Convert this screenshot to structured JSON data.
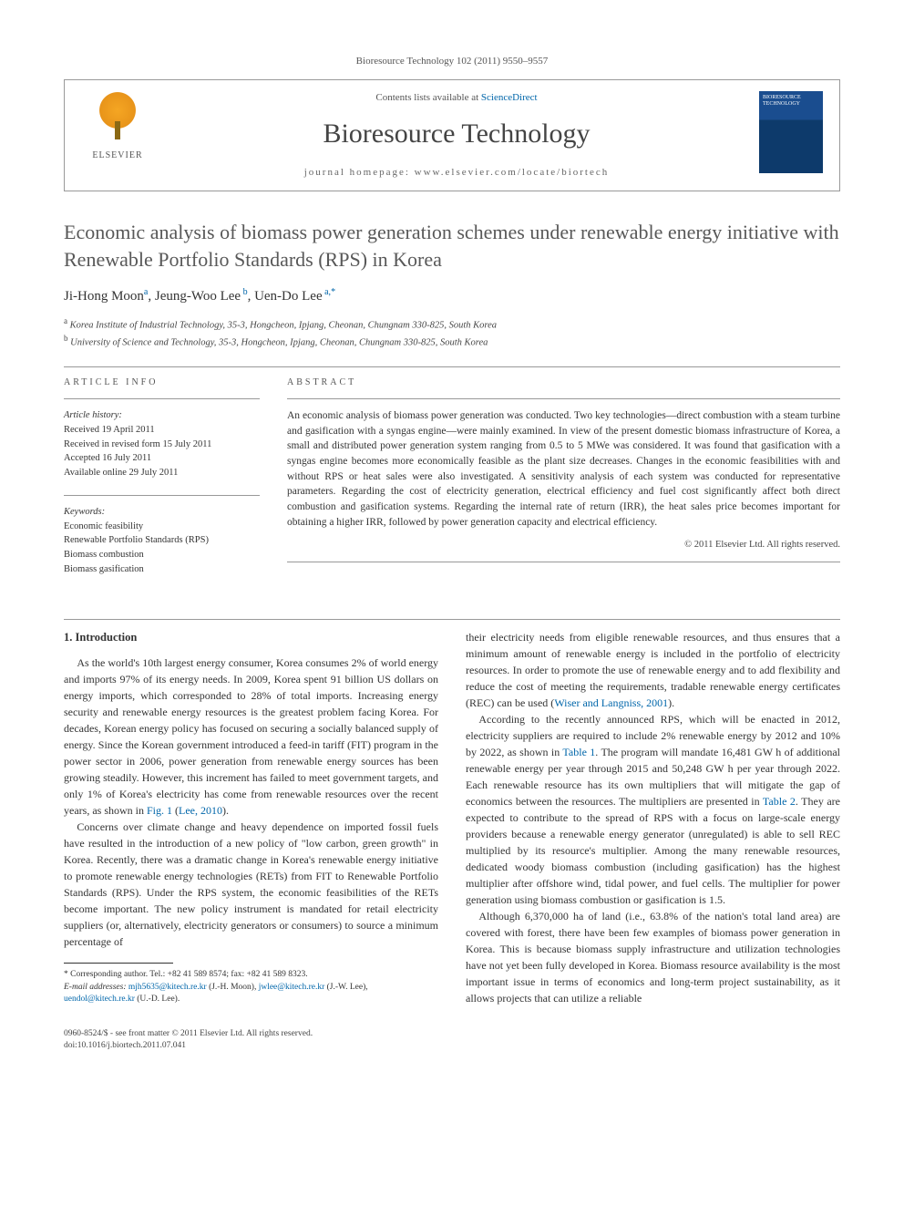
{
  "journal_ref": "Bioresource Technology 102 (2011) 9550–9557",
  "masthead": {
    "contents_prefix": "Contents lists available at ",
    "contents_link": "ScienceDirect",
    "journal_name": "Bioresource Technology",
    "homepage_prefix": "journal homepage: ",
    "homepage_url": "www.elsevier.com/locate/biortech",
    "publisher": "ELSEVIER",
    "cover_label": "BIORESOURCE TECHNOLOGY"
  },
  "article": {
    "title": "Economic analysis of biomass power generation schemes under renewable energy initiative with Renewable Portfolio Standards (RPS) in Korea",
    "authors_html": "Ji-Hong Moon<sup>a</sup>, Jeung-Woo Lee<sup>b</sup>, Uen-Do Lee<sup>a,</sup>",
    "corr_mark": "*",
    "affiliations": {
      "a": "Korea Institute of Industrial Technology, 35-3, Hongcheon, Ipjang, Cheonan, Chungnam 330-825, South Korea",
      "b": "University of Science and Technology, 35-3, Hongcheon, Ipjang, Cheonan, Chungnam 330-825, South Korea"
    }
  },
  "info": {
    "heading": "ARTICLE INFO",
    "history_label": "Article history:",
    "history": {
      "received": "Received 19 April 2011",
      "revised": "Received in revised form 15 July 2011",
      "accepted": "Accepted 16 July 2011",
      "online": "Available online 29 July 2011"
    },
    "keywords_label": "Keywords:",
    "keywords": [
      "Economic feasibility",
      "Renewable Portfolio Standards (RPS)",
      "Biomass combustion",
      "Biomass gasification"
    ]
  },
  "abstract": {
    "heading": "ABSTRACT",
    "text": "An economic analysis of biomass power generation was conducted. Two key technologies—direct combustion with a steam turbine and gasification with a syngas engine—were mainly examined. In view of the present domestic biomass infrastructure of Korea, a small and distributed power generation system ranging from 0.5 to 5 MWe was considered. It was found that gasification with a syngas engine becomes more economically feasible as the plant size decreases. Changes in the economic feasibilities with and without RPS or heat sales were also investigated. A sensitivity analysis of each system was conducted for representative parameters. Regarding the cost of electricity generation, electrical efficiency and fuel cost significantly affect both direct combustion and gasification systems. Regarding the internal rate of return (IRR), the heat sales price becomes important for obtaining a higher IRR, followed by power generation capacity and electrical efficiency.",
    "copyright": "© 2011 Elsevier Ltd. All rights reserved."
  },
  "body": {
    "section1_heading": "1. Introduction",
    "p1": "As the world's 10th largest energy consumer, Korea consumes 2% of world energy and imports 97% of its energy needs. In 2009, Korea spent 91 billion US dollars on energy imports, which corresponded to 28% of total imports. Increasing energy security and renewable energy resources is the greatest problem facing Korea. For decades, Korean energy policy has focused on securing a socially balanced supply of energy. Since the Korean government introduced a feed-in tariff (FIT) program in the power sector in 2006, power generation from renewable energy sources has been growing steadily. However, this increment has failed to meet government targets, and only 1% of Korea's electricity has come from renewable resources over the recent years, as shown in ",
    "p1_link1": "Fig. 1",
    "p1_after": " (",
    "p1_link2": "Lee, 2010",
    "p1_end": ").",
    "p2": "Concerns over climate change and heavy dependence on imported fossil fuels have resulted in the introduction of a new policy of \"low carbon, green growth\" in Korea. Recently, there was a dramatic change in Korea's renewable energy initiative to promote renewable energy technologies (RETs) from FIT to Renewable Portfolio Standards (RPS). Under the RPS system, the economic feasibilities of the RETs become important. The new policy instrument is mandated for retail electricity suppliers (or, alternatively, electricity generators or consumers) to source a minimum percentage of ",
    "p3": "their electricity needs from eligible renewable resources, and thus ensures that a minimum amount of renewable energy is included in the portfolio of electricity resources. In order to promote the use of renewable energy and to add flexibility and reduce the cost of meeting the requirements, tradable renewable energy certificates (REC) can be used (",
    "p3_link": "Wiser and Langniss, 2001",
    "p3_end": ").",
    "p4a": "According to the recently announced RPS, which will be enacted in 2012, electricity suppliers are required to include 2% renewable energy by 2012 and 10% by 2022, as shown in ",
    "p4_link1": "Table 1",
    "p4b": ". The program will mandate 16,481 GW h of additional renewable energy per year through 2015 and 50,248 GW h per year through 2022. Each renewable resource has its own multipliers that will mitigate the gap of economics between the resources. The multipliers are presented in ",
    "p4_link2": "Table 2",
    "p4c": ". They are expected to contribute to the spread of RPS with a focus on large-scale energy providers because a renewable energy generator (unregulated) is able to sell REC multiplied by its resource's multiplier. Among the many renewable resources, dedicated woody biomass combustion (including gasification) has the highest multiplier after offshore wind, tidal power, and fuel cells. The multiplier for power generation using biomass combustion or gasification is 1.5.",
    "p5": "Although 6,370,000 ha of land (i.e., 63.8% of the nation's total land area) are covered with forest, there have been few examples of biomass power generation in Korea. This is because biomass supply infrastructure and utilization technologies have not yet been fully developed in Korea. Biomass resource availability is the most important issue in terms of economics and long-term project sustainability, as it allows projects that can utilize a reliable"
  },
  "footnote": {
    "corr": "Corresponding author. Tel.: +82 41 589 8574; fax: +82 41 589 8323.",
    "email_label": "E-mail addresses:",
    "emails": [
      {
        "addr": "mjh5635@kitech.re.kr",
        "who": "(J.-H. Moon)"
      },
      {
        "addr": "jwlee@kitech.re.kr",
        "who": "(J.-W. Lee)"
      },
      {
        "addr": "uendol@kitech.re.kr",
        "who": "(U.-D. Lee)."
      }
    ]
  },
  "footer": {
    "line1": "0960-8524/$ - see front matter © 2011 Elsevier Ltd. All rights reserved.",
    "line2": "doi:10.1016/j.biortech.2011.07.041"
  },
  "colors": {
    "link": "#0066aa",
    "text": "#333333",
    "heading_gray": "#585858",
    "rule": "#999999"
  }
}
